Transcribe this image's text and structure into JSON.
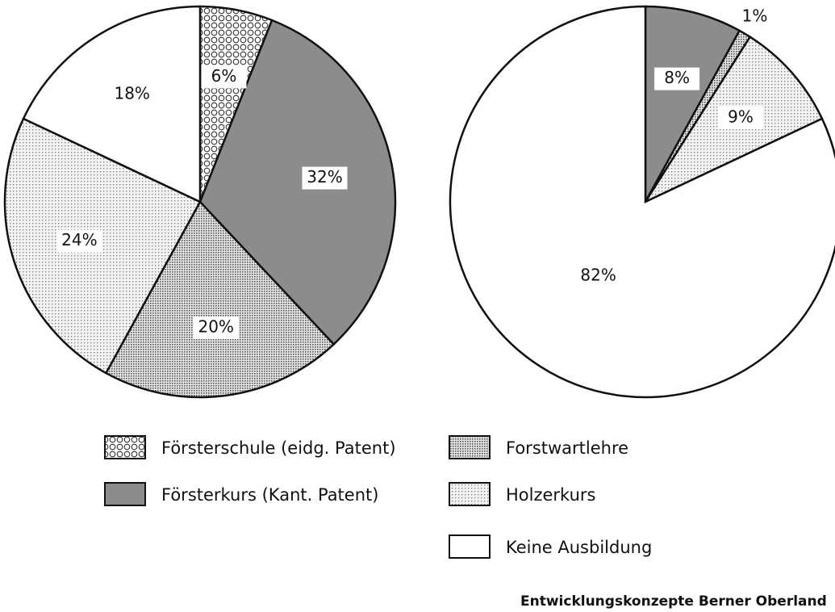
{
  "chart_data": {
    "type": "pie",
    "categories": [
      "Försterschule (eidg. Patent)",
      "Försterkurs (Kant. Patent)",
      "Forstwartlehre",
      "Holzerkurs",
      "Keine Ausbildung"
    ],
    "colors": [
      "url(#pat-circles)",
      "#8c8c8c",
      "url(#pat-dense)",
      "url(#pat-light)",
      "#ffffff"
    ],
    "series": [
      {
        "values": [
          6,
          32,
          20,
          24,
          18
        ],
        "value_labels": [
          "6%",
          "32%",
          "20%",
          "24%",
          "18%"
        ]
      },
      {
        "values": [
          null,
          8,
          1,
          9,
          82
        ],
        "value_labels": [
          null,
          "8%",
          "1%",
          "9%",
          "82%"
        ]
      }
    ],
    "source": "Entwicklungskonzepte Berner Oberland"
  }
}
